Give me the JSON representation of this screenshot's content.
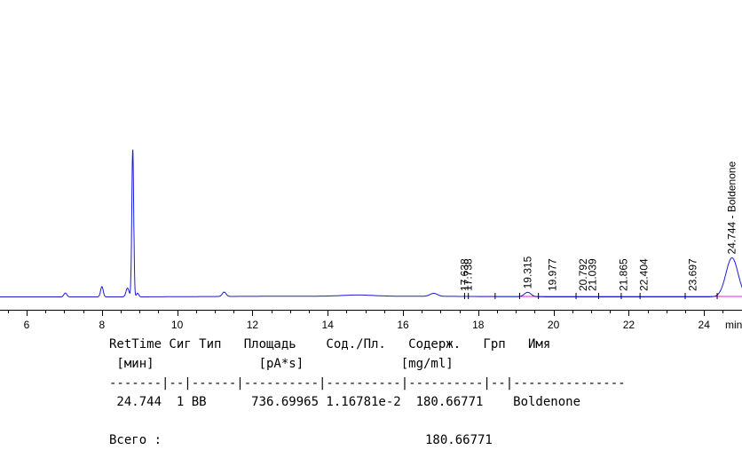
{
  "chart_data": {
    "type": "line",
    "x_unit": "min",
    "xlim": [
      4.6,
      25.2
    ],
    "x_ticks": [
      6,
      8,
      10,
      12,
      14,
      16,
      18,
      20,
      22,
      24
    ],
    "colors": {
      "signal": "#1b1bd8",
      "baseline": "#e020e0",
      "axis": "#000000"
    },
    "signal": {
      "baseline_level": 0.9,
      "peaks": [
        {
          "rt": 7.03,
          "height": 2.6,
          "width": 0.04
        },
        {
          "rt": 8.0,
          "height": 7.0,
          "width": 0.035
        },
        {
          "rt": 8.68,
          "height": 6.0,
          "width": 0.04
        },
        {
          "rt": 8.82,
          "height": 100.0,
          "width": 0.025
        },
        {
          "rt": 8.95,
          "height": 2.5,
          "width": 0.03
        },
        {
          "rt": 11.25,
          "height": 3.0,
          "width": 0.05
        },
        {
          "rt": 14.8,
          "height": 0.8,
          "width": 0.4
        },
        {
          "rt": 16.82,
          "height": 2.0,
          "width": 0.1
        },
        {
          "rt": 19.315,
          "height": 3.0,
          "width": 0.09
        },
        {
          "rt": 24.744,
          "height": 26.5,
          "width": 0.16
        }
      ]
    },
    "labeled_peaks": [
      {
        "rt": 17.638,
        "label": "17.638"
      },
      {
        "rt": 17.738,
        "label": "17.738"
      },
      {
        "rt": 19.315,
        "label": "19.315"
      },
      {
        "rt": 19.977,
        "label": "19.977"
      },
      {
        "rt": 20.792,
        "label": "20.792"
      },
      {
        "rt": 21.039,
        "label": "21.039"
      },
      {
        "rt": 21.865,
        "label": "21.865"
      },
      {
        "rt": 22.404,
        "label": "22.404"
      },
      {
        "rt": 23.697,
        "label": "23.697"
      },
      {
        "rt": 24.744,
        "label": "24.744 - Boldenone"
      }
    ]
  },
  "report": {
    "header_line1": "RetTime Сиг Тип   Площадь    Сод./Пл.   Содерж.   Грп   Имя",
    "header_line2": " [мин]              [pA*s]             [mg/ml]",
    "separator": "-------|--|------|----------|----------|----------|--|---------------",
    "rows": [
      {
        "text": " 24.744  1 BB      736.69965 1.16781e-2  180.66771    Boldenone"
      }
    ],
    "total_label": "Всего :",
    "total_value": "180.66771"
  }
}
